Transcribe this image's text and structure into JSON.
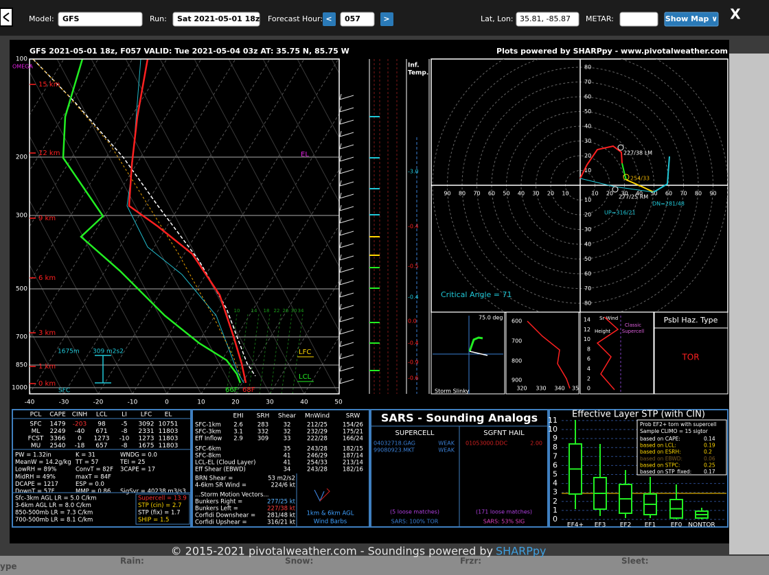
{
  "toolbar": {
    "model_label": "Model:",
    "model": "GFS",
    "run_label": "Run:",
    "run": "Sat 2021-05-01 18z",
    "hour_label": "Forecast Hour:",
    "prev": "<",
    "hour": "057",
    "next": ">",
    "latlon_label": "Lat, Lon:",
    "latlon": "35.81, -85.87",
    "metar_label": "METAR:",
    "show_map": "Show Map ∨",
    "close": "X"
  },
  "header": {
    "left": "GFS 2021-05-01 18z, F057  VALID: Tue 2021-05-04 03z  AT: 35.75 N, 85.75 W",
    "right": "Plots powered by SHARPpy - www.pivotalweather.com"
  },
  "skewt": {
    "pressures": [
      "100",
      "200",
      "300",
      "500",
      "700",
      "850",
      "1000"
    ],
    "temps": [
      "-40",
      "-30",
      "-20",
      "-10",
      "0",
      "10",
      "20",
      "30",
      "40",
      "50"
    ],
    "heights": [
      "15 km",
      "12 km",
      "9 km",
      "6 km",
      "3 km",
      "1 km",
      "0 km"
    ],
    "omega": "OMEGA",
    "el": "EL",
    "lfc": "LFC",
    "lcl": "LCL",
    "sfc": "SFC",
    "sfc_dewpoint": "66F",
    "sfc_temp": "68F",
    "eff_inflow_top": "1675m",
    "eff_srh": "309 m2s2",
    "mixing_ratios": [
      "10",
      "14",
      "18",
      "22",
      "26",
      "30",
      "34"
    ],
    "inf_temp": [
      "Inf.",
      "Temp."
    ],
    "omega_values": [
      "-3.0",
      "-0.4",
      "-0.5",
      "-0.4",
      "0.0",
      "-0.4",
      "-0.9",
      "-0.6"
    ]
  },
  "hodograph": {
    "rings_up": [
      "80",
      "70",
      "60",
      "50",
      "40",
      "30",
      "20",
      "10"
    ],
    "rings_down": [
      "10",
      "20",
      "30",
      "40",
      "50",
      "60",
      "70",
      "80"
    ],
    "x_left": [
      "90",
      "80",
      "70",
      "60",
      "50",
      "40",
      "30",
      "20",
      "10"
    ],
    "x_right": [
      "10",
      "20",
      "30",
      "40",
      "50",
      "60",
      "70",
      "80",
      "90"
    ],
    "lm": "227/38 LM",
    "cloud_layer": "254/33",
    "rm": "277/25 RM",
    "dn": "DN=281/48",
    "up": "UP=316/21",
    "critical_angle": "Critical Angle = 71"
  },
  "insets": {
    "slinky_angle": "75.0 deg",
    "slinky": "Storm Slinky",
    "thetae_p": [
      "600",
      "700",
      "800",
      "900"
    ],
    "thetae_t": [
      "320",
      "330",
      "340",
      "35"
    ],
    "srwind_h": [
      "14",
      "12",
      "10",
      "8",
      "6",
      "4",
      "2",
      "0"
    ],
    "srwind": "Sr Wind",
    "height": "Height",
    "classic": [
      "Classic",
      "Supercell"
    ],
    "haz_title": "Psbl Haz. Type",
    "haz": "TOR"
  },
  "parcels": {
    "header": [
      "PCL",
      "CAPE",
      "CINH",
      "LCL",
      "LI",
      "LFC",
      "EL"
    ],
    "rows": [
      [
        "SFC",
        "1479",
        "-203",
        "98",
        "-5",
        "3092",
        "10751"
      ],
      [
        "ML",
        "2249",
        "-40",
        "671",
        "-8",
        "2331",
        "11803"
      ],
      [
        "FCST",
        "3366",
        "0",
        "1273",
        "-10",
        "1273",
        "11803"
      ],
      [
        "MU",
        "2540",
        "-18",
        "657",
        "-8",
        "1675",
        "11803"
      ]
    ]
  },
  "thermo": [
    [
      "PW = 1.32in",
      "K = 31",
      "WNDG = 0.0"
    ],
    [
      "MeanW = 14.2g/kg",
      "TT = 57",
      "TEI = 25"
    ],
    [
      "LowRH = 89%",
      "ConvT = 82F",
      "3CAPE = 17"
    ],
    [
      "MidRH = 49%",
      "maxT = 84F"
    ],
    [
      "DCAPE = 1217",
      "ESP = 0.0"
    ],
    [
      "DownT = 57F",
      "MMP = 0.86",
      "SigSvr = 40238 m3/s3"
    ]
  ],
  "lapse_rates": [
    "Sfc-3km AGL LR = 5.0 C/km",
    "3-6km AGL LR = 8.0 C/km",
    "850-500mb LR = 7.3 C/km",
    "700-500mb LR = 8.1 C/km"
  ],
  "indices": [
    {
      "text": "Supercell = 13.9",
      "color": "#ff3030"
    },
    {
      "text": "STP (cin) = 2.7",
      "color": "#ffd700"
    },
    {
      "text": "STP (fix) = 1.7",
      "color": "#ffffff"
    },
    {
      "text": "SHIP = 1.5",
      "color": "#ffd700"
    }
  ],
  "kinematics": {
    "header": [
      "EHI",
      "SRH",
      "Shear",
      "MnWind",
      "SRW"
    ],
    "rows": [
      {
        "label": "SFC-1km",
        "ehi": "2.6",
        "srh": "283",
        "shear": "32",
        "mnwind": "212/25",
        "srw": "154/26"
      },
      {
        "label": "SFC-3km",
        "ehi": "3.1",
        "srh": "332",
        "shear": "32",
        "mnwind": "232/29",
        "srw": "175/21"
      },
      {
        "label": "Eff Inflow",
        "ehi": "2.9",
        "srh": "309",
        "shear": "33",
        "mnwind": "222/28",
        "srw": "166/24"
      },
      {
        "label": "SFC-6km",
        "shear": "35",
        "mnwind": "243/28",
        "srw": "182/15"
      },
      {
        "label": "SFC-8km",
        "shear": "41",
        "mnwind": "246/29",
        "srw": "187/14"
      },
      {
        "label": "LCL-EL (Cloud Layer)",
        "shear": "41",
        "mnwind": "254/33",
        "srw": "213/14"
      },
      {
        "label": "Eff Shear (EBWD)",
        "shear": "34",
        "mnwind": "243/28",
        "srw": "182/16"
      }
    ],
    "brn": {
      "label": "BRN Shear =",
      "value": "53 m2/s2"
    },
    "sr46": {
      "label": "4-6km SR Wind =",
      "value": "224/6 kt"
    },
    "motion_title": "...Storm Motion Vectors...",
    "vectors": [
      {
        "label": "Bunkers Right =",
        "value": "277/25 kt",
        "color": "#5ab4ff"
      },
      {
        "label": "Bunkers Left =",
        "value": "227/38 kt",
        "color": "#ff4040"
      },
      {
        "label": "Corfidi Downshear =",
        "value": "281/48 kt",
        "color": "#ffffff"
      },
      {
        "label": "Corfidi Upshear =",
        "value": "316/21 kt",
        "color": "#ffffff"
      }
    ],
    "barbs": [
      "1km & 6km AGL",
      "Wind Barbs"
    ]
  },
  "sars": {
    "title": "SARS - Sounding Analogs",
    "supercell": "SUPERCELL",
    "hail": "SGFNT HAIL",
    "supercell_matches": [
      [
        "04032718.GAG",
        "WEAK"
      ],
      [
        "99080923.MKT",
        "WEAK"
      ]
    ],
    "hail_matches": [
      [
        "01053000.DDC",
        "2.00"
      ]
    ],
    "supercell_loose": "(5 loose matches)",
    "hail_loose": "(171 loose matches)",
    "supercell_result": "SARS: 100% TOR",
    "hail_result": "SARS: 53% SIG"
  },
  "stp": {
    "title": "Effective Layer STP (with CIN)",
    "yticks": [
      "0",
      "1",
      "2",
      "3",
      "4",
      "5",
      "6",
      "7",
      "8",
      "9",
      "10",
      "11"
    ],
    "categories": [
      "EF4+",
      "EF3",
      "EF2",
      "EF1",
      "EF0",
      "NONTOR"
    ],
    "legend_title": [
      "Prob EF2+ torn with supercell",
      "Sample CLIMO = 15 sigtor"
    ],
    "legend_rows": [
      {
        "label": "based on CAPE:",
        "value": "0.14",
        "color": "#ffffff"
      },
      {
        "label": "based on LCL:",
        "value": "0.19",
        "color": "#ffd700"
      },
      {
        "label": "based on ESRH:",
        "value": "0.2",
        "color": "#ffd700"
      },
      {
        "label": "based on EBWD:",
        "value": "0.06",
        "color": "#7a5a20"
      },
      {
        "label": "based on STPC:",
        "value": "0.25",
        "color": "#ffd700"
      },
      {
        "label": "based on STP_fixed:",
        "value": "0.17",
        "color": "#ffffff"
      }
    ]
  },
  "footer": {
    "text": "© 2015-2021 pivotalweather.com - Soundings powered by",
    "link": "SHARPpy"
  },
  "background": [
    "Rain:",
    "Snow:",
    "Frzr:",
    "Sleet:",
    "ype"
  ]
}
